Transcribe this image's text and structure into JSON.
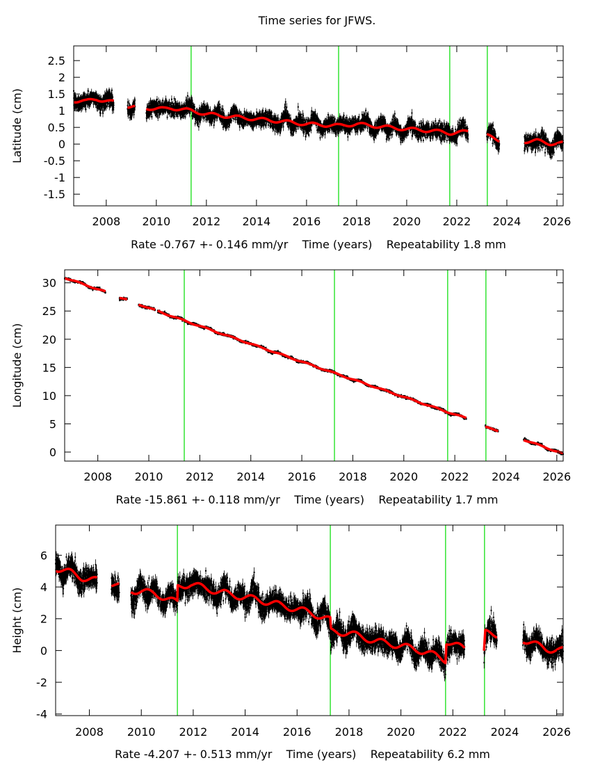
{
  "title": "Time series for JFWS.",
  "colors": {
    "data": "#000000",
    "model": "#ff0000",
    "offset_lines": "#00dd00",
    "frame": "#000000"
  },
  "chart_data": [
    {
      "type": "scatter",
      "name": "latitude",
      "title": "Time series for JFWS.",
      "ylabel": "Latitude (cm)",
      "xlabel": "Rate -0.767 +- 0.146 mm/yr    Time (years)    Repeatability 1.8 mm",
      "rate": "-0.767",
      "rate_sigma": "0.146",
      "repeatability": "1.8 mm",
      "xlim": [
        2006.7,
        2026.25
      ],
      "ylim": [
        -1.85,
        2.94
      ],
      "xticks": [
        2008,
        2010,
        2012,
        2014,
        2016,
        2018,
        2020,
        2022,
        2024,
        2026
      ],
      "yticks": [
        -1.5,
        -1,
        -0.5,
        0,
        0.5,
        1,
        1.5,
        2,
        2.5
      ],
      "ytick_labels": [
        "-1.5",
        "-1",
        "-0.5",
        "0",
        "0.5",
        "1",
        "1.5",
        "2",
        "2.5"
      ],
      "offset_epochs": [
        2011.39,
        2017.28,
        2021.72,
        2023.22
      ],
      "segments": [
        [
          2006.7,
          2008.3
        ],
        [
          2008.85,
          2009.15
        ],
        [
          2009.6,
          2022.45
        ],
        [
          2023.2,
          2023.7
        ],
        [
          2024.7,
          2026.25
        ]
      ],
      "model": [
        [
          2006.7,
          1.3
        ],
        [
          2007.2,
          1.28
        ],
        [
          2007.6,
          1.35
        ],
        [
          2008.3,
          1.25
        ],
        [
          2008.9,
          1.12
        ],
        [
          2009.6,
          1.08
        ],
        [
          2010.3,
          1.05
        ],
        [
          2010.6,
          1.08
        ],
        [
          2011.4,
          1.0
        ],
        [
          2012.0,
          0.9
        ],
        [
          2013.0,
          0.82
        ],
        [
          2014.0,
          0.75
        ],
        [
          2015.0,
          0.68
        ],
        [
          2016.0,
          0.6
        ],
        [
          2017.28,
          0.55
        ],
        [
          2018.0,
          0.6
        ],
        [
          2019.0,
          0.52
        ],
        [
          2020.0,
          0.45
        ],
        [
          2021.0,
          0.4
        ],
        [
          2021.72,
          0.33
        ],
        [
          2022.45,
          0.37
        ],
        [
          2023.2,
          0.25
        ],
        [
          2023.7,
          0.12
        ],
        [
          2024.7,
          0.08
        ],
        [
          2025.2,
          0.1
        ],
        [
          2025.7,
          0.02
        ],
        [
          2026.25,
          0.02
        ]
      ],
      "scatter_sigma": 0.18,
      "seasonal_amplitude": 0.05
    },
    {
      "type": "scatter",
      "name": "longitude",
      "ylabel": "Longitude (cm)",
      "xlabel": "Rate -15.861 +- 0.118 mm/yr    Time (years)    Repeatability 1.7 mm",
      "rate": "-15.861",
      "rate_sigma": "0.118",
      "repeatability": "1.7 mm",
      "xlim": [
        2006.7,
        2026.25
      ],
      "ylim": [
        -1.6,
        32.3
      ],
      "xticks": [
        2008,
        2010,
        2012,
        2014,
        2016,
        2018,
        2020,
        2022,
        2024,
        2026
      ],
      "yticks": [
        0,
        5,
        10,
        15,
        20,
        25,
        30
      ],
      "ytick_labels": [
        "0",
        "5",
        "10",
        "15",
        "20",
        "25",
        "30"
      ],
      "offset_epochs": [
        2011.39,
        2017.28,
        2021.72,
        2023.22
      ],
      "segments": [
        [
          2006.7,
          2008.3
        ],
        [
          2008.85,
          2009.15
        ],
        [
          2009.6,
          2010.25
        ],
        [
          2010.35,
          2022.45
        ],
        [
          2023.2,
          2023.7
        ],
        [
          2024.7,
          2026.25
        ]
      ],
      "model": [
        [
          2006.7,
          30.9
        ],
        [
          2008.3,
          28.4
        ],
        [
          2008.85,
          27.4
        ],
        [
          2009.15,
          27.0
        ],
        [
          2009.6,
          26.2
        ],
        [
          2011.39,
          23.3
        ],
        [
          2017.28,
          14.0
        ],
        [
          2021.72,
          7.1
        ],
        [
          2022.45,
          6.0
        ],
        [
          2023.2,
          4.4
        ],
        [
          2023.7,
          3.8
        ],
        [
          2024.7,
          2.2
        ],
        [
          2026.25,
          -0.3
        ]
      ],
      "scatter_sigma": 0.17,
      "seasonal_amplitude": 0.1
    },
    {
      "type": "scatter",
      "name": "height",
      "ylabel": "Height (cm)",
      "xlabel": "Rate -4.207 +- 0.513 mm/yr    Time (years)    Repeatability 6.2 mm",
      "rate": "-4.207",
      "rate_sigma": "0.513",
      "repeatability": "6.2 mm",
      "xlim": [
        2006.7,
        2026.25
      ],
      "ylim": [
        -4.1,
        7.9
      ],
      "xticks": [
        2008,
        2010,
        2012,
        2014,
        2016,
        2018,
        2020,
        2022,
        2024,
        2026
      ],
      "yticks": [
        -4,
        -2,
        0,
        2,
        4,
        6
      ],
      "ytick_labels": [
        "-4",
        "-2",
        "0",
        "2",
        "4",
        "6"
      ],
      "offset_epochs": [
        2011.39,
        2017.28,
        2021.72,
        2023.22
      ],
      "segments": [
        [
          2006.7,
          2008.3
        ],
        [
          2008.85,
          2009.15
        ],
        [
          2009.6,
          2022.45
        ],
        [
          2023.2,
          2023.7
        ],
        [
          2024.7,
          2026.25
        ]
      ],
      "model": [
        [
          2006.7,
          5.2
        ],
        [
          2007.3,
          4.9
        ],
        [
          2007.7,
          4.6
        ],
        [
          2008.3,
          4.4
        ],
        [
          2008.9,
          4.2
        ],
        [
          2009.6,
          3.8
        ],
        [
          2010.5,
          3.6
        ],
        [
          2011.39,
          3.0
        ],
        [
          2011.4,
          4.0
        ],
        [
          2011.9,
          4.2
        ],
        [
          2012.5,
          3.9
        ],
        [
          2013.5,
          3.5
        ],
        [
          2014.5,
          3.2
        ],
        [
          2015.5,
          2.8
        ],
        [
          2016.5,
          2.4
        ],
        [
          2017.28,
          1.9
        ],
        [
          2017.3,
          1.2
        ],
        [
          2018.0,
          1.1
        ],
        [
          2019.0,
          0.6
        ],
        [
          2020.0,
          0.3
        ],
        [
          2021.0,
          -0.1
        ],
        [
          2021.72,
          -0.6
        ],
        [
          2021.75,
          0.6
        ],
        [
          2022.45,
          0.1
        ],
        [
          2023.2,
          -0.2
        ],
        [
          2023.25,
          1.1
        ],
        [
          2023.7,
          1.0
        ],
        [
          2024.7,
          0.7
        ],
        [
          2025.3,
          0.3
        ],
        [
          2025.6,
          0.1
        ],
        [
          2026.25,
          0.0
        ]
      ],
      "scatter_sigma": 0.55,
      "seasonal_amplitude": 0.2
    }
  ]
}
